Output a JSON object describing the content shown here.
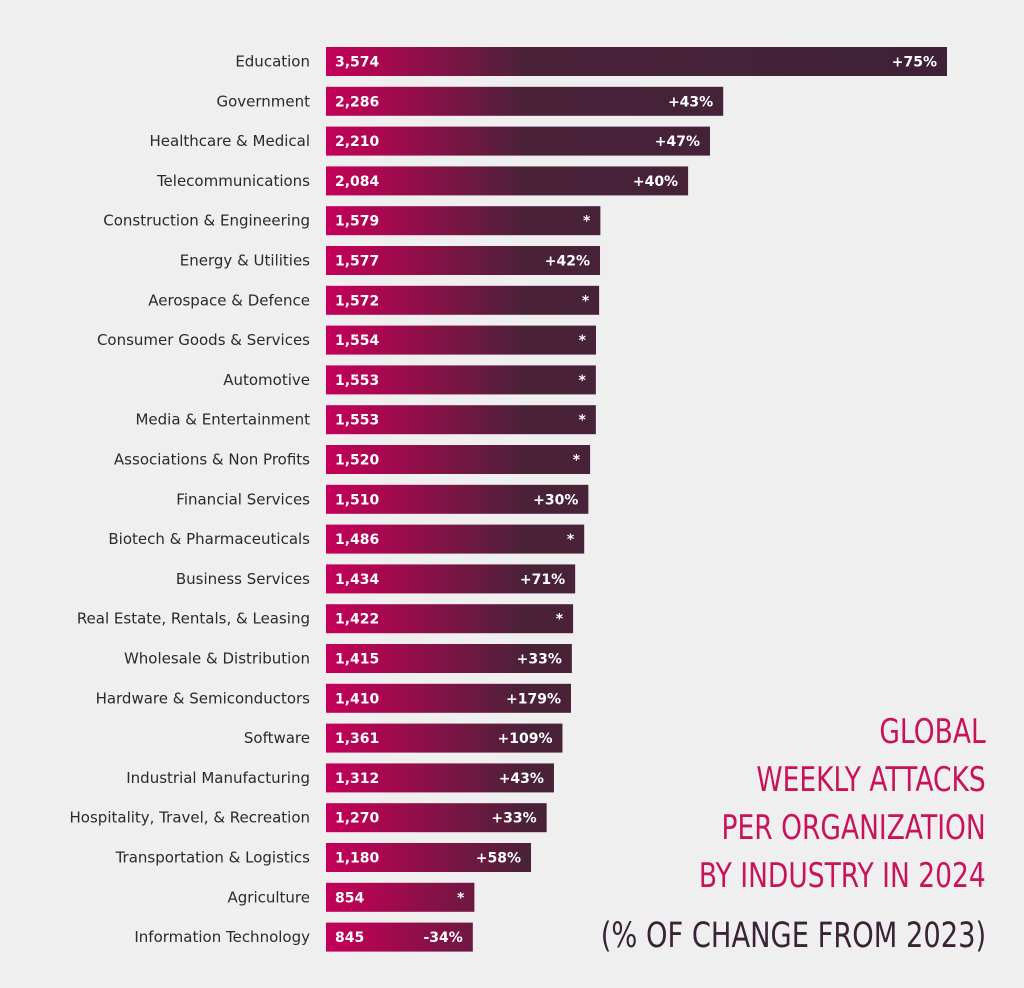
{
  "chart_data": {
    "type": "bar",
    "orientation": "horizontal",
    "title": [
      "GLOBAL",
      "WEEKLY ATTACKS",
      "PER ORGANIZATION",
      "BY INDUSTRY IN 2024"
    ],
    "subtitle": "(% OF CHANGE FROM 2023)",
    "xlim": [
      0,
      3574
    ],
    "grid": false,
    "legend": "none",
    "colors": {
      "accent": "#c4005a",
      "bar": "#432238",
      "background": "#f0eff0"
    },
    "categories": [
      "Education",
      "Government",
      "Healthcare & Medical",
      "Telecommunications",
      "Construction & Engineering",
      "Energy & Utilities",
      "Aerospace & Defence",
      "Consumer Goods & Services",
      "Automotive",
      "Media & Entertainment",
      "Associations & Non Profits",
      "Financial Services",
      "Biotech & Pharmaceuticals",
      "Business Services",
      "Real Estate, Rentals, & Leasing",
      "Wholesale & Distribution",
      "Hardware & Semiconductors",
      "Software",
      "Industrial Manufacturing",
      "Hospitality, Travel, & Recreation",
      "Transportation & Logistics",
      "Agriculture",
      "Information Technology"
    ],
    "values": [
      3574,
      2286,
      2210,
      2084,
      1579,
      1577,
      1572,
      1554,
      1553,
      1553,
      1520,
      1510,
      1486,
      1434,
      1422,
      1415,
      1410,
      1361,
      1312,
      1270,
      1180,
      854,
      845
    ],
    "value_labels": [
      "3,574",
      "2,286",
      "2,210",
      "2,084",
      "1,579",
      "1,577",
      "1,572",
      "1,554",
      "1,553",
      "1,553",
      "1,520",
      "1,510",
      "1,486",
      "1,434",
      "1,422",
      "1,415",
      "1,410",
      "1,361",
      "1,312",
      "1,270",
      "1,180",
      "854",
      "845"
    ],
    "change_labels": [
      "+75%",
      "+43%",
      "+47%",
      "+40%",
      "*",
      "+42%",
      "*",
      "*",
      "*",
      "*",
      "*",
      "+30%",
      "*",
      "+71%",
      "*",
      "+33%",
      "+179%",
      "+109%",
      "+43%",
      "+33%",
      "+58%",
      "*",
      "-34%"
    ]
  }
}
